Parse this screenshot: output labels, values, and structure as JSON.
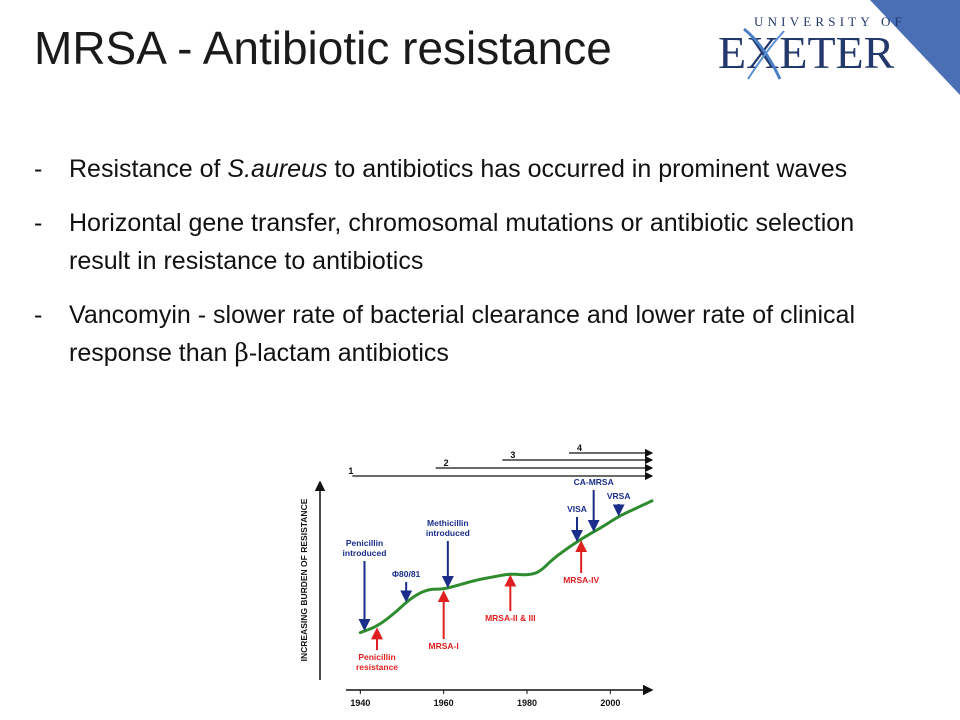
{
  "slide": {
    "title": "MRSA - Antibiotic resistance",
    "logo_text": "UNIVERSITY OF EXETER",
    "colors": {
      "accent_blue": "#4a6fb5",
      "logo_navy": "#23386b",
      "curve_green": "#2e8b2e",
      "arrow_red": "#e02020",
      "arrow_blue": "#1a2d8a"
    }
  },
  "bullets": [
    {
      "dash": "-",
      "before": "Resistance of ",
      "italic": "S.aureus",
      "after": " to antibiotics has occurred in prominent waves"
    },
    {
      "dash": "-",
      "text": "Horizontal gene transfer, chromosomal mutations or antibiotic selection result in resistance to antibiotics"
    },
    {
      "dash": "-",
      "before": "Vancomyin - slower rate of bacterial clearance and lower rate of clinical response than ",
      "symbol": "β",
      "after": "-lactam antibiotics"
    }
  ],
  "chart_data": {
    "type": "line",
    "ylabel": "INCREASING BURDEN OF RESISTANCE",
    "x_ticks": [
      1940,
      1960,
      1980,
      2000
    ],
    "xlim": [
      1938,
      2010
    ],
    "ylim": [
      0,
      100
    ],
    "curve": {
      "x": [
        1940,
        1944,
        1948,
        1952,
        1956,
        1960,
        1964,
        1968,
        1972,
        1976,
        1980,
        1983,
        1986,
        1990,
        1994,
        1998,
        2002,
        2006,
        2010
      ],
      "y": [
        8,
        12,
        20,
        30,
        36,
        36,
        39,
        42,
        44,
        46,
        45,
        47,
        55,
        63,
        70,
        76,
        83,
        88,
        93
      ]
    },
    "waves": [
      {
        "label": "1",
        "start": 1940
      },
      {
        "label": "2",
        "start": 1960
      },
      {
        "label": "3",
        "start": 1976
      },
      {
        "label": "4",
        "start": 1992
      }
    ],
    "events_above": [
      {
        "label": "Penicillin introduced",
        "x": 1941
      },
      {
        "label": "Φ80/81",
        "x": 1951
      },
      {
        "label": "Methicillin introduced",
        "x": 1961
      },
      {
        "label": "VISA",
        "x": 1992
      },
      {
        "label": "CA-MRSA",
        "x": 1996
      },
      {
        "label": "VRSA",
        "x": 2002
      }
    ],
    "events_below": [
      {
        "label": "Penicillin resistance",
        "x": 1944
      },
      {
        "label": "MRSA-I",
        "x": 1960
      },
      {
        "label": "MRSA-II & III",
        "x": 1976
      },
      {
        "label": "MRSA-IV",
        "x": 1993
      }
    ]
  }
}
